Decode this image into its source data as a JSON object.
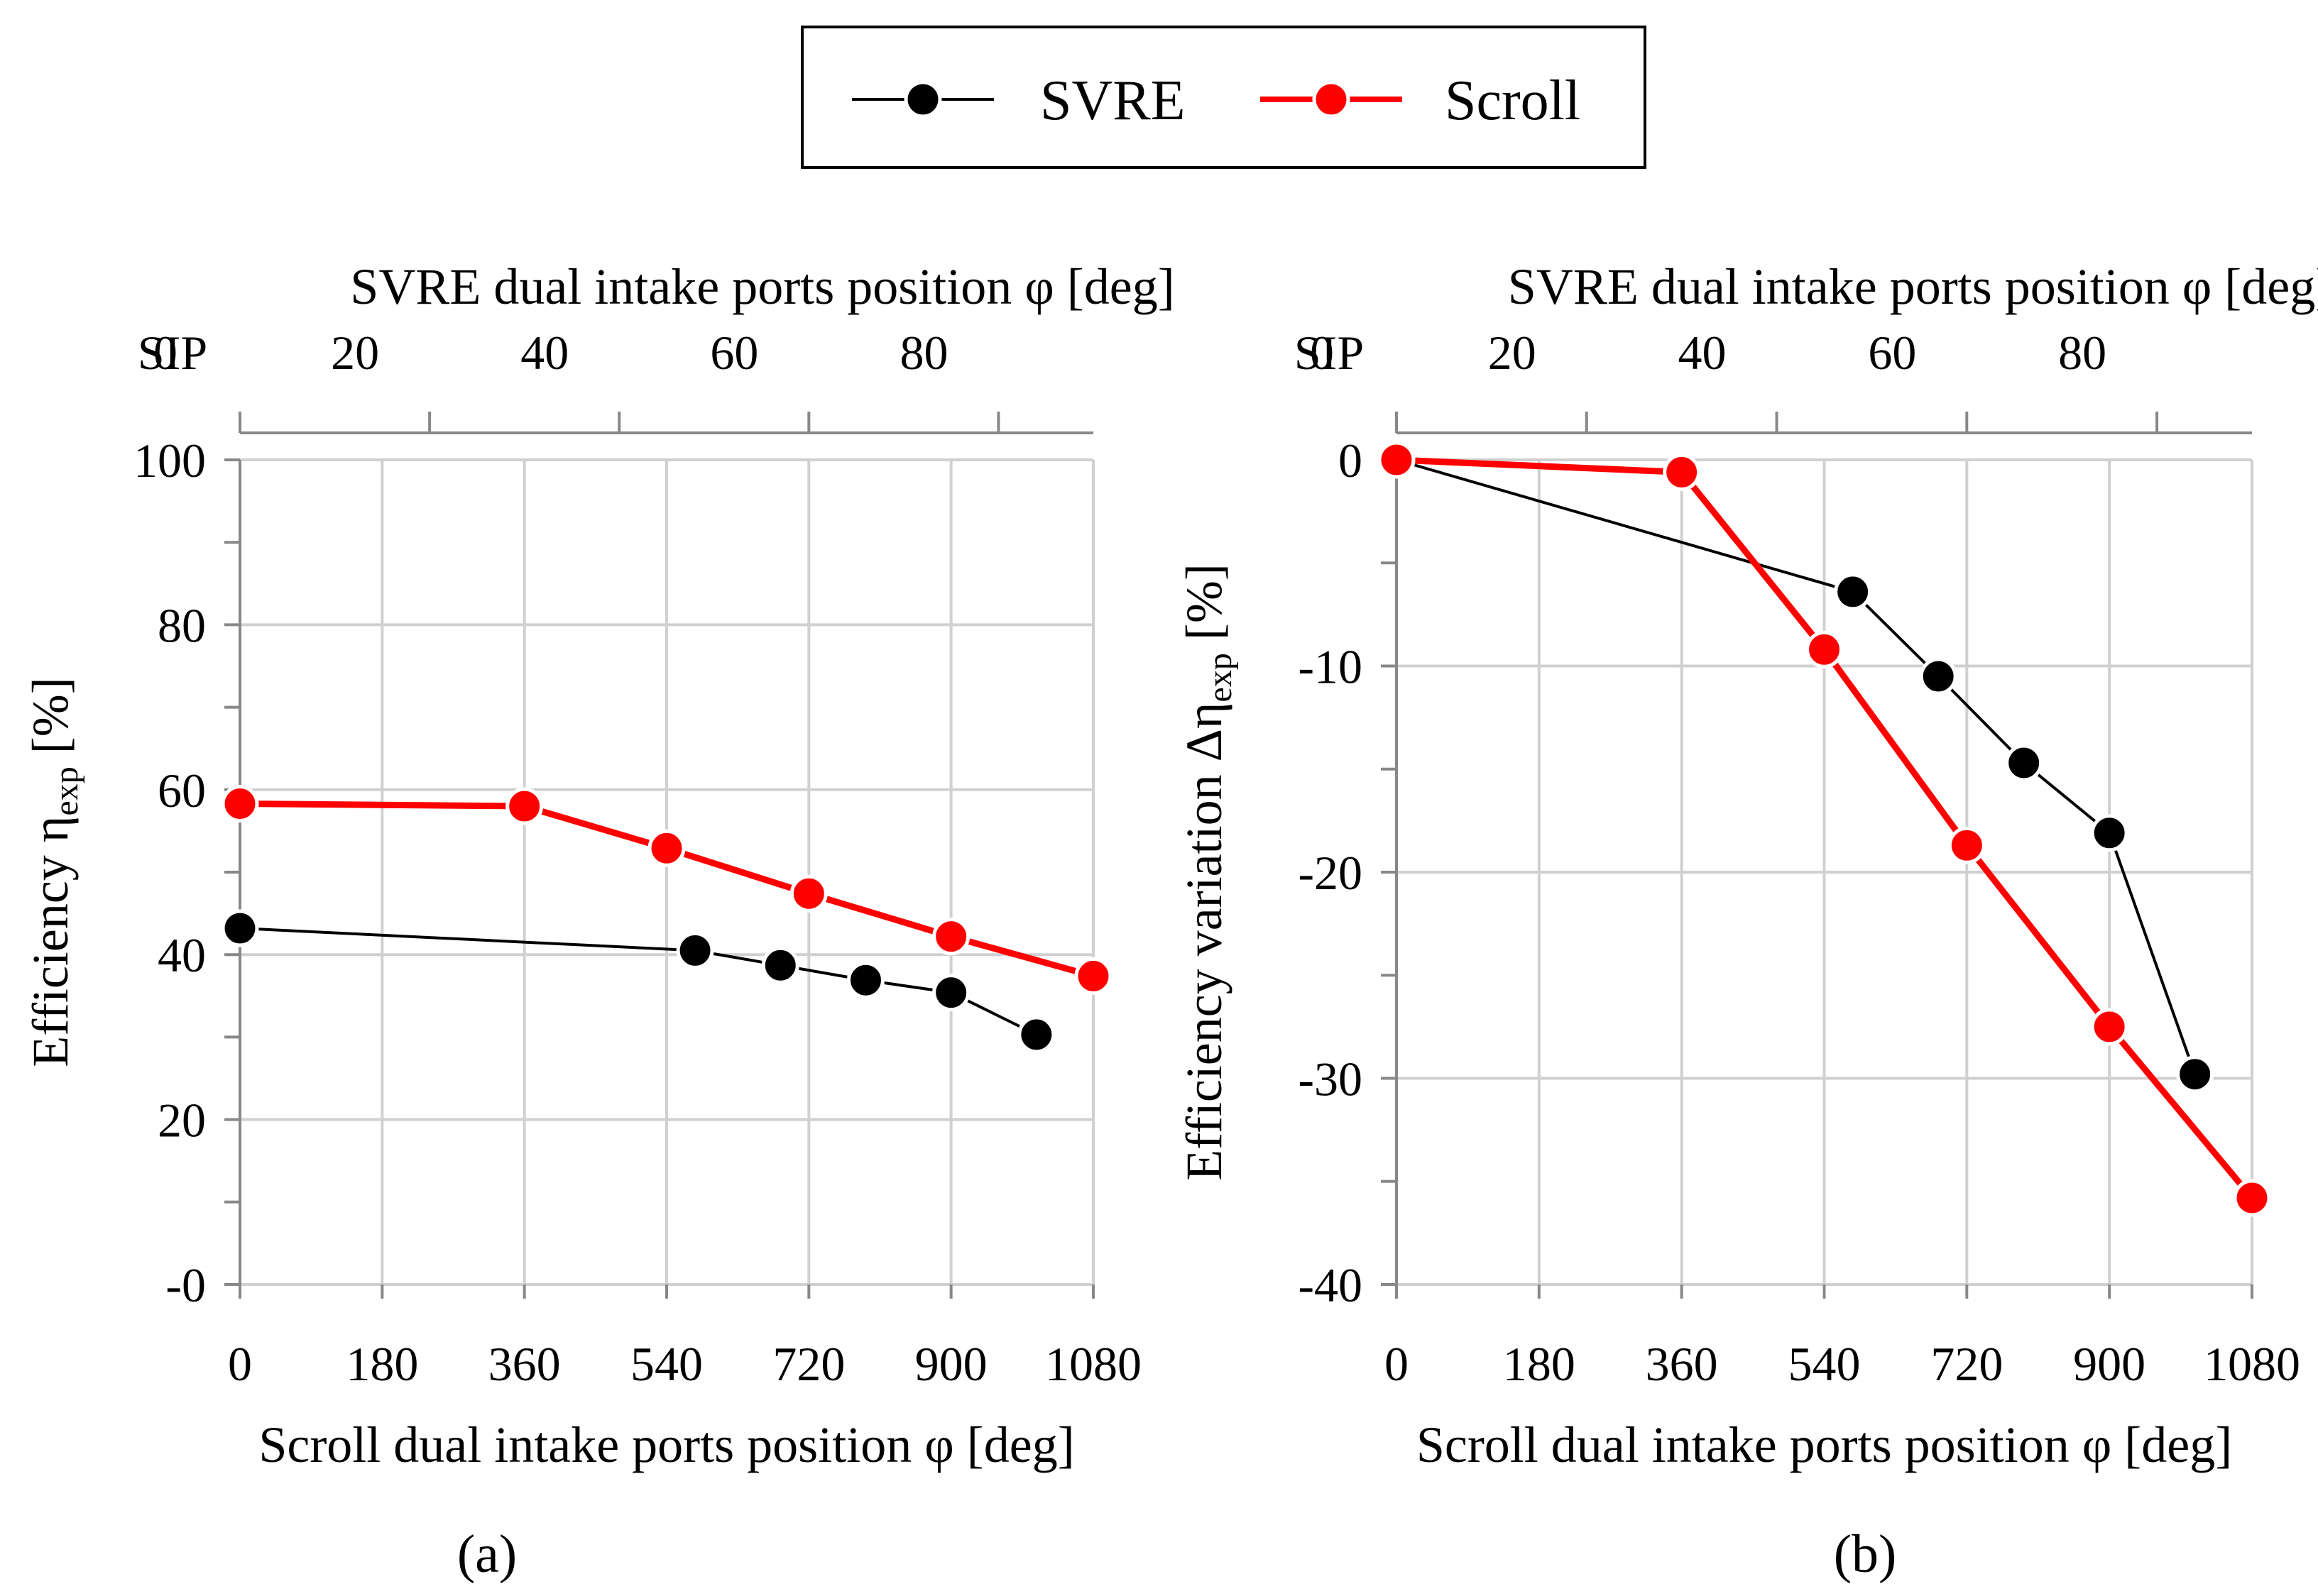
{
  "legend": {
    "items": [
      {
        "label": "SVRE",
        "color": "#000000"
      },
      {
        "label": "Scroll",
        "color": "#ff0000"
      }
    ]
  },
  "chart_data": [
    {
      "type": "line",
      "panel_label": "(a)",
      "xlabel": "Scroll dual intake ports position φ [deg]",
      "ylabel": "Efficiency η",
      "ylabel_sub": "exp",
      "ylabel_unit": " [%]",
      "top_axis_label": "SVRE dual intake ports position φ [deg]",
      "top_axis_sip": "SIP",
      "top_axis_ticks": [
        "0",
        "20",
        "40",
        "60",
        "80"
      ],
      "top_axis_tick_x": [
        0,
        240,
        480,
        720,
        960
      ],
      "x_ticks": [
        0,
        180,
        360,
        540,
        720,
        900,
        1080
      ],
      "xlim": [
        0,
        1080
      ],
      "y_ticks": [
        100,
        80,
        60,
        40,
        20,
        0
      ],
      "y_tick_labels": [
        "100",
        "80",
        "60",
        "40",
        "20",
        "-0"
      ],
      "ylim": [
        0,
        100
      ],
      "series": [
        {
          "name": "SVRE",
          "color": "#000000",
          "x": [
            0,
            576,
            684,
            792,
            900,
            1008
          ],
          "y": [
            43.2,
            40.5,
            38.7,
            36.9,
            35.4,
            30.3
          ]
        },
        {
          "name": "Scroll",
          "color": "#ff0000",
          "x": [
            0,
            360,
            540,
            720,
            900,
            1080
          ],
          "y": [
            58.3,
            58.0,
            52.9,
            47.4,
            42.2,
            37.4
          ]
        }
      ]
    },
    {
      "type": "line",
      "panel_label": "(b)",
      "xlabel": "Scroll dual intake ports position φ [deg]",
      "ylabel": "Efficiency variation Δη",
      "ylabel_sub": "exp",
      "ylabel_unit": " [%]",
      "top_axis_label": "SVRE dual intake ports position φ [deg]",
      "top_axis_sip": "SIP",
      "top_axis_ticks": [
        "0",
        "20",
        "40",
        "60",
        "80"
      ],
      "top_axis_tick_x": [
        0,
        240,
        480,
        720,
        960
      ],
      "x_ticks": [
        0,
        180,
        360,
        540,
        720,
        900,
        1080
      ],
      "xlim": [
        0,
        1080
      ],
      "y_ticks": [
        0,
        -10,
        -20,
        -30,
        -40
      ],
      "y_tick_labels": [
        "0",
        "-10",
        "-20",
        "-30",
        "-40"
      ],
      "ylim": [
        -40,
        0
      ],
      "series": [
        {
          "name": "SVRE",
          "color": "#000000",
          "x": [
            0,
            576,
            684,
            792,
            900,
            1008
          ],
          "y": [
            0,
            -6.4,
            -10.5,
            -14.7,
            -18.1,
            -29.8
          ]
        },
        {
          "name": "Scroll",
          "color": "#ff0000",
          "x": [
            0,
            360,
            540,
            720,
            900,
            1080
          ],
          "y": [
            0,
            -0.6,
            -9.2,
            -18.7,
            -27.5,
            -35.8
          ]
        }
      ]
    }
  ]
}
